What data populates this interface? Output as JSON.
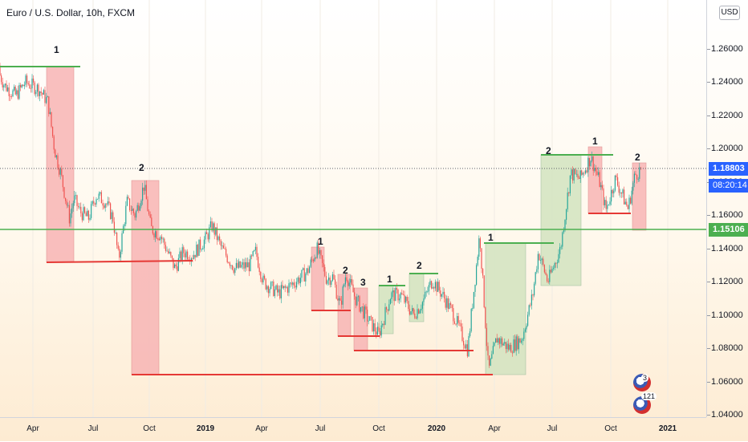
{
  "header": {
    "title": "Euro / U.S. Dollar, 10h, FXCM",
    "currency_button": "USD"
  },
  "price_axis": {
    "ticks": [
      "1.26000",
      "1.24000",
      "1.22000",
      "1.20000",
      "1.18000",
      "1.16000",
      "1.14000",
      "1.12000",
      "1.10000",
      "1.08000",
      "1.06000",
      "1.04000"
    ],
    "current_price": "1.18803",
    "countdown": "08:20:14",
    "level_price": "1.15106"
  },
  "time_axis": {
    "ticks": [
      {
        "label": "Apr",
        "bold": false
      },
      {
        "label": "Jul",
        "bold": false
      },
      {
        "label": "Oct",
        "bold": false
      },
      {
        "label": "2019",
        "bold": true
      },
      {
        "label": "Apr",
        "bold": false
      },
      {
        "label": "Jul",
        "bold": false
      },
      {
        "label": "Oct",
        "bold": false
      },
      {
        "label": "2020",
        "bold": true
      },
      {
        "label": "Apr",
        "bold": false
      },
      {
        "label": "Jul",
        "bold": false
      },
      {
        "label": "Oct",
        "bold": false
      },
      {
        "label": "2021",
        "bold": true
      }
    ]
  },
  "annotations": {
    "wave_labels": [
      "1",
      "2",
      "1",
      "2",
      "3",
      "1",
      "2",
      "1",
      "2",
      "1",
      "2"
    ],
    "badge_counts": [
      "3",
      "121"
    ]
  },
  "colors": {
    "bullish_candle": "#26a69a",
    "bearish_candle": "#ef5350",
    "green_line": "#4caf50",
    "red_line": "#e53935",
    "red_box_fill": "#f8b5b5",
    "green_box_fill": "#d3e4c0",
    "price_label_blue": "#2962ff"
  },
  "chart_data": {
    "type": "candlestick",
    "symbol": "EURUSD",
    "timeframe": "10h",
    "x_range": [
      "2018-02-01",
      "2021-02-10"
    ],
    "ylim": [
      1.038,
      1.275
    ],
    "horizontal_level": 1.15106,
    "current_price": 1.18803,
    "close_path": [
      [
        "2018-02-01",
        1.25
      ],
      [
        "2018-02-15",
        1.238
      ],
      [
        "2018-03-05",
        1.232
      ],
      [
        "2018-03-20",
        1.24
      ],
      [
        "2018-04-10",
        1.236
      ],
      [
        "2018-04-25",
        1.228
      ],
      [
        "2018-05-05",
        1.2
      ],
      [
        "2018-05-15",
        1.185
      ],
      [
        "2018-05-29",
        1.158
      ],
      [
        "2018-06-05",
        1.17
      ],
      [
        "2018-06-15",
        1.162
      ],
      [
        "2018-06-28",
        1.158
      ],
      [
        "2018-07-10",
        1.172
      ],
      [
        "2018-07-25",
        1.168
      ],
      [
        "2018-08-06",
        1.158
      ],
      [
        "2018-08-15",
        1.133
      ],
      [
        "2018-08-28",
        1.168
      ],
      [
        "2018-09-10",
        1.16
      ],
      [
        "2018-09-24",
        1.178
      ],
      [
        "2018-10-05",
        1.152
      ],
      [
        "2018-10-20",
        1.148
      ],
      [
        "2018-11-12",
        1.128
      ],
      [
        "2018-11-25",
        1.138
      ],
      [
        "2018-12-10",
        1.136
      ],
      [
        "2018-12-31",
        1.146
      ],
      [
        "2019-01-10",
        1.154
      ],
      [
        "2019-01-25",
        1.14
      ],
      [
        "2019-02-15",
        1.128
      ],
      [
        "2019-03-10",
        1.13
      ],
      [
        "2019-03-20",
        1.138
      ],
      [
        "2019-04-01",
        1.12
      ],
      [
        "2019-04-25",
        1.113
      ],
      [
        "2019-05-15",
        1.118
      ],
      [
        "2019-06-10",
        1.126
      ],
      [
        "2019-06-25",
        1.14
      ],
      [
        "2019-07-10",
        1.122
      ],
      [
        "2019-07-20",
        1.123
      ],
      [
        "2019-08-01",
        1.105
      ],
      [
        "2019-08-10",
        1.125
      ],
      [
        "2019-08-25",
        1.11
      ],
      [
        "2019-09-10",
        1.1
      ],
      [
        "2019-10-01",
        1.088
      ],
      [
        "2019-10-20",
        1.112
      ],
      [
        "2019-11-05",
        1.112
      ],
      [
        "2019-11-25",
        1.1
      ],
      [
        "2019-12-10",
        1.108
      ],
      [
        "2019-12-25",
        1.121
      ],
      [
        "2020-01-10",
        1.112
      ],
      [
        "2020-01-28",
        1.1
      ],
      [
        "2020-02-19",
        1.079
      ],
      [
        "2020-03-09",
        1.149
      ],
      [
        "2020-03-23",
        1.066
      ],
      [
        "2020-04-05",
        1.086
      ],
      [
        "2020-04-25",
        1.08
      ],
      [
        "2020-05-15",
        1.086
      ],
      [
        "2020-06-01",
        1.112
      ],
      [
        "2020-06-10",
        1.138
      ],
      [
        "2020-06-25",
        1.12
      ],
      [
        "2020-07-15",
        1.14
      ],
      [
        "2020-07-31",
        1.185
      ],
      [
        "2020-08-15",
        1.182
      ],
      [
        "2020-09-01",
        1.195
      ],
      [
        "2020-09-15",
        1.18
      ],
      [
        "2020-09-25",
        1.163
      ],
      [
        "2020-10-10",
        1.182
      ],
      [
        "2020-10-30",
        1.164
      ],
      [
        "2020-11-10",
        1.184
      ],
      [
        "2020-11-20",
        1.188
      ]
    ]
  }
}
